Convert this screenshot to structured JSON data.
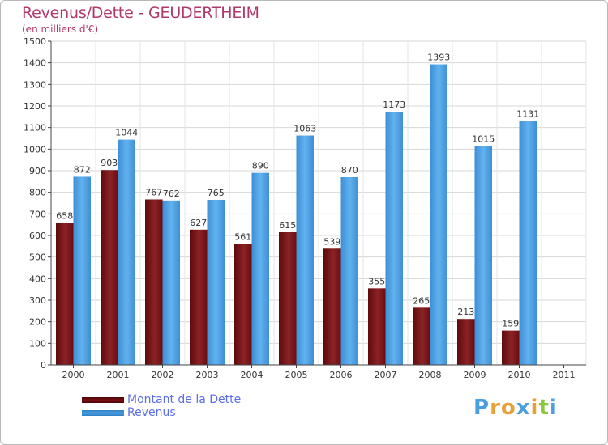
{
  "header": {
    "title": "Revenus/Dette - GEUDERTHEIM",
    "subtitle": "(en milliers d'€)"
  },
  "legend": {
    "items": [
      {
        "label": "Montant de la Dette",
        "color": "#7a0f12"
      },
      {
        "label": "Revenus",
        "color": "#4a9fe0"
      }
    ]
  },
  "logo": {
    "text": "Proxiti",
    "colors": [
      "#4a9fe0",
      "#e8a13a",
      "#e8a13a",
      "#4a9fe0",
      "#e8a13a",
      "#8cc63f",
      "#4a9fe0"
    ]
  },
  "chart_data": {
    "type": "bar",
    "categories": [
      "2000",
      "2001",
      "2002",
      "2003",
      "2004",
      "2005",
      "2006",
      "2007",
      "2008",
      "2009",
      "2010",
      "2011"
    ],
    "series": [
      {
        "name": "Montant de la Dette",
        "color": "#7a0f12",
        "values": [
          658,
          903,
          767,
          627,
          561,
          615,
          539,
          355,
          265,
          213,
          159,
          null
        ]
      },
      {
        "name": "Revenus",
        "color": "#4a9fe0",
        "values": [
          872,
          1044,
          762,
          765,
          890,
          1063,
          870,
          1173,
          1393,
          1015,
          1131,
          null
        ]
      }
    ],
    "ylim": [
      0,
      1500
    ],
    "yticks": [
      0,
      100,
      200,
      300,
      400,
      500,
      600,
      700,
      800,
      900,
      1000,
      1100,
      1200,
      1300,
      1400,
      1500
    ],
    "grid": true,
    "legend_position": "bottom-left"
  }
}
